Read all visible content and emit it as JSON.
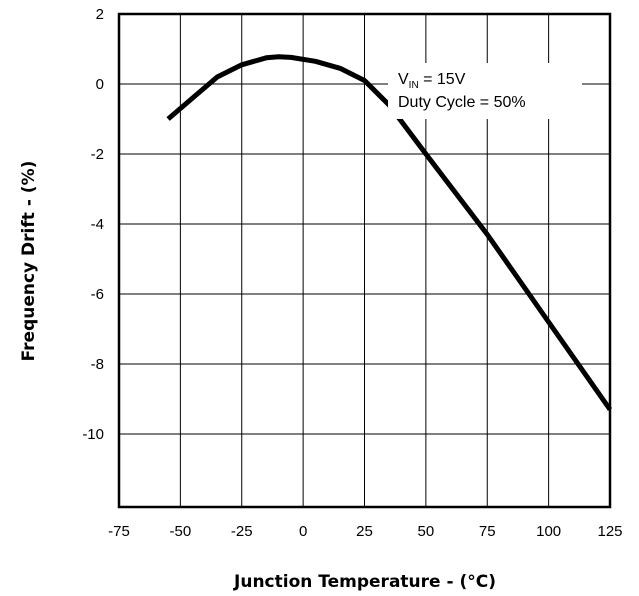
{
  "chart_data": {
    "type": "line",
    "xlabel": "Junction Temperature - (°C)",
    "ylabel": "Frequency Drift - (%)",
    "xlim": [
      -75,
      125
    ],
    "ylim": [
      -12,
      2
    ],
    "x_ticks": [
      -75,
      -50,
      -25,
      0,
      25,
      50,
      75,
      100,
      125
    ],
    "x_tick_labels": [
      "-75",
      "-50",
      "-25",
      "0",
      "25",
      "50",
      "75",
      "100",
      "125"
    ],
    "y_ticks": [
      2,
      0,
      -2,
      -4,
      -6,
      -8,
      -10
    ],
    "y_tick_labels": [
      "2",
      "0",
      "-2",
      "-4",
      "-6",
      "-8",
      "-10"
    ],
    "grid": true,
    "legend": "none",
    "annotation": {
      "v_prefix": "V",
      "v_subscript": "IN",
      "v_value": " = 15V",
      "duty_cycle": "Duty Cycle = 50%"
    },
    "series": [
      {
        "x": [
          -55,
          -45,
          -35,
          -25,
          -15,
          -10,
          -5,
          5,
          15,
          25,
          35,
          50,
          75,
          100,
          125
        ],
        "y": [
          -1.0,
          -0.4,
          0.2,
          0.55,
          0.75,
          0.78,
          0.76,
          0.65,
          0.45,
          0.1,
          -0.6,
          -2.0,
          -4.3,
          -6.8,
          -9.3
        ]
      }
    ],
    "line_color": "#000000"
  }
}
